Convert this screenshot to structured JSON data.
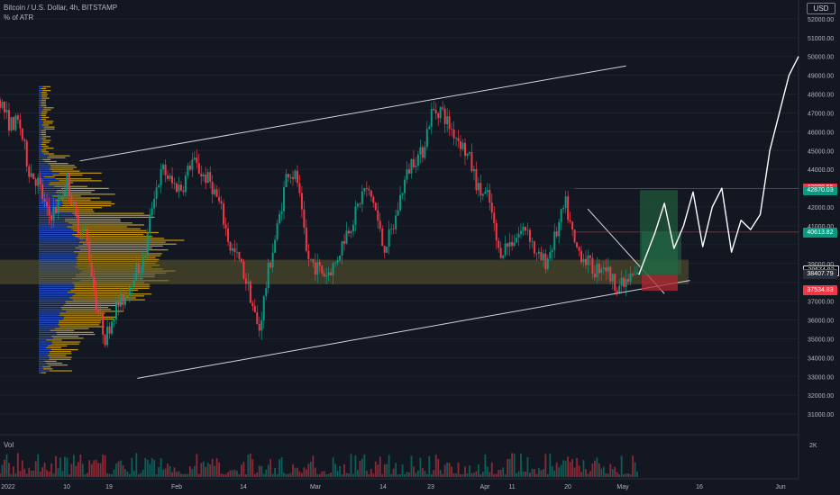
{
  "header": {
    "title": "Bitcoin / U.S. Dollar, 4h, BITSTAMP",
    "indicator": "% of ATR",
    "currency": "USD",
    "volume_label": "Vol"
  },
  "axis": {
    "price_ticks": [
      "52000.00",
      "51000.00",
      "50000.00",
      "49000.00",
      "48000.00",
      "47000.00",
      "46000.00",
      "45000.00",
      "44000.00",
      "42000.00",
      "41000.00",
      "39000.00",
      "37000.00",
      "36000.00",
      "35000.00",
      "34000.00",
      "33000.00",
      "32000.00",
      "31000.00"
    ],
    "volume_tick": "2K",
    "time_ticks": [
      "2022",
      "10",
      "19",
      "Feb",
      "14",
      "Mar",
      "14",
      "23",
      "Apr",
      "11",
      "20",
      "May",
      "16",
      "Jun"
    ]
  },
  "price_tags": [
    {
      "label": "42988.55",
      "color": "#f23645"
    },
    {
      "label": "42870.03",
      "color": "#089981"
    },
    {
      "label": "40668.31",
      "color": "#f23645"
    },
    {
      "label": "40613.82",
      "color": "#089981"
    },
    {
      "label": "38674.82",
      "color": "#000000"
    },
    {
      "label": "38461.62",
      "color": "#5d606b"
    },
    {
      "label": "38407.79",
      "color": "#2a2e39"
    },
    {
      "label": "37588.66",
      "color": "#f23645"
    },
    {
      "label": "37534.83",
      "color": "#f23645"
    }
  ],
  "chart_data": {
    "type": "candlestick",
    "symbol": "Bitcoin / U.S. Dollar",
    "interval": "4h",
    "exchange": "BITSTAMP",
    "ylim": [
      30000,
      53000
    ],
    "price_path": [
      [
        0,
        47700
      ],
      [
        3,
        46400
      ],
      [
        6,
        46500
      ],
      [
        9,
        44000
      ],
      [
        12,
        43300
      ],
      [
        15,
        41500
      ],
      [
        18,
        42000
      ],
      [
        21,
        43500
      ],
      [
        24,
        41200
      ],
      [
        27,
        40500
      ],
      [
        30,
        37000
      ],
      [
        33,
        35000
      ],
      [
        36,
        36600
      ],
      [
        39,
        37200
      ],
      [
        42,
        38500
      ],
      [
        45,
        39000
      ],
      [
        48,
        42600
      ],
      [
        51,
        44000
      ],
      [
        54,
        43200
      ],
      [
        57,
        43000
      ],
      [
        60,
        44500
      ],
      [
        63,
        43800
      ],
      [
        66,
        43300
      ],
      [
        69,
        42000
      ],
      [
        72,
        39900
      ],
      [
        75,
        39100
      ],
      [
        78,
        37600
      ],
      [
        81,
        35300
      ],
      [
        84,
        38600
      ],
      [
        87,
        41000
      ],
      [
        90,
        44000
      ],
      [
        93,
        43500
      ],
      [
        96,
        39400
      ],
      [
        99,
        38800
      ],
      [
        102,
        38400
      ],
      [
        105,
        39000
      ],
      [
        108,
        40500
      ],
      [
        111,
        41500
      ],
      [
        114,
        43000
      ],
      [
        117,
        42300
      ],
      [
        120,
        39800
      ],
      [
        123,
        40800
      ],
      [
        126,
        43000
      ],
      [
        129,
        44500
      ],
      [
        132,
        44800
      ],
      [
        135,
        47000
      ],
      [
        138,
        47200
      ],
      [
        141,
        46200
      ],
      [
        144,
        45500
      ],
      [
        147,
        44500
      ],
      [
        150,
        42800
      ],
      [
        153,
        42500
      ],
      [
        156,
        39600
      ],
      [
        159,
        40000
      ],
      [
        162,
        40500
      ],
      [
        165,
        41000
      ],
      [
        168,
        39300
      ],
      [
        171,
        39100
      ],
      [
        174,
        40500
      ],
      [
        177,
        42200
      ],
      [
        180,
        39900
      ],
      [
        183,
        39300
      ],
      [
        186,
        38600
      ],
      [
        189,
        39000
      ],
      [
        192,
        38000
      ],
      [
        195,
        37800
      ],
      [
        198,
        38300
      ],
      [
        200,
        38400
      ]
    ],
    "volume_profile": {
      "bins_high": 48500,
      "bins_low": 33200,
      "point_of_control": 38900
    },
    "channel": {
      "upper": [
        [
          0,
          44500
        ],
        [
          162,
          49100
        ]
      ],
      "lower": [
        [
          0,
          32900
        ],
        [
          170,
          38200
        ]
      ]
    },
    "support_zone": [
      37900,
      39200
    ],
    "projected_path": [
      [
        200,
        38400
      ],
      [
        205,
        40600
      ],
      [
        208,
        42200
      ],
      [
        211,
        39800
      ],
      [
        214,
        41000
      ],
      [
        217,
        42800
      ],
      [
        220,
        39900
      ],
      [
        223,
        42000
      ],
      [
        226,
        43000
      ],
      [
        229,
        39600
      ],
      [
        232,
        41300
      ],
      [
        235,
        40800
      ],
      [
        238,
        41600
      ],
      [
        241,
        45000
      ],
      [
        244,
        47000
      ],
      [
        247,
        49000
      ],
      [
        250,
        50000
      ]
    ],
    "levels": [
      42988.55,
      42870.03,
      40668.31,
      40613.82,
      38674.82,
      38461.62,
      38407.79,
      37588.66,
      37534.83
    ],
    "colors": {
      "up": "#089981",
      "down": "#f23645",
      "profile_value": "#2962ff",
      "profile": "#f0b90b"
    }
  }
}
